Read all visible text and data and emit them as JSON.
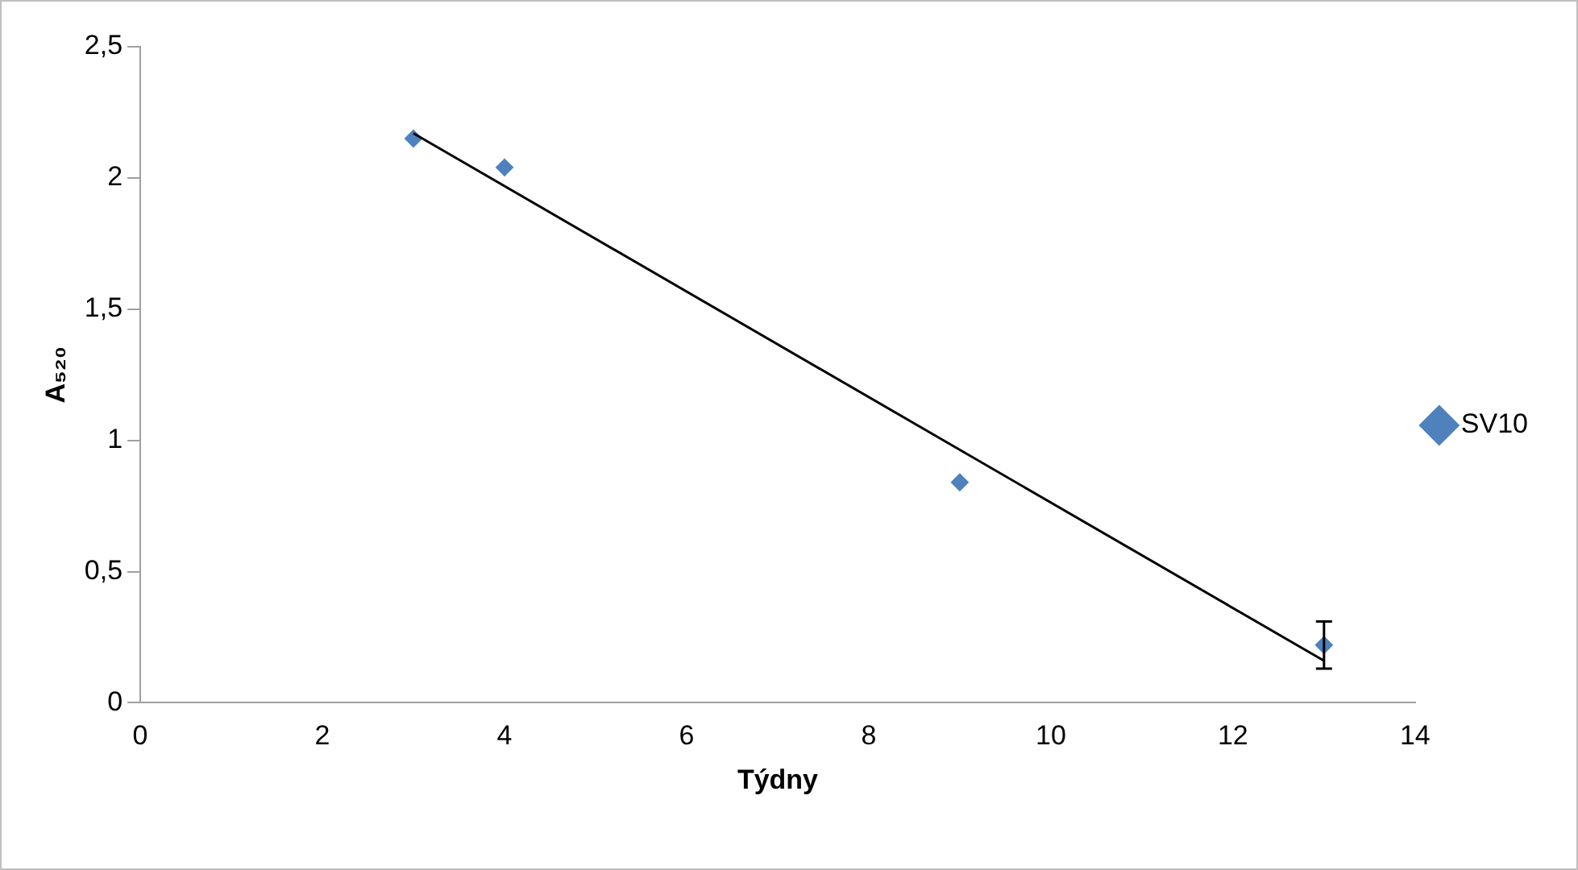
{
  "chart_data": {
    "type": "scatter",
    "xlabel": "Týdny",
    "ylabel": "A₅₂₀",
    "xlim": [
      0,
      14
    ],
    "xticks": [
      0,
      2,
      4,
      6,
      8,
      10,
      12,
      14
    ],
    "ylim": [
      0,
      2.5
    ],
    "yticks": [
      0,
      {
        "value": 0.5,
        "label": "0,5"
      },
      1,
      {
        "value": 1.5,
        "label": "1,5"
      },
      2,
      {
        "value": 2.5,
        "label": "2,5"
      }
    ],
    "grid": false,
    "legend": "right",
    "marker": "diamond",
    "series": [
      {
        "name": "SV10",
        "color": "#4f81bd",
        "x": [
          3,
          4,
          9,
          13
        ],
        "values": [
          2.15,
          2.04,
          0.84,
          0.22
        ],
        "errors": [
          null,
          null,
          null,
          0.09
        ]
      },
      {
        "type": "line",
        "color": "#000000",
        "x": [
          3,
          13
        ],
        "values": [
          2.17,
          0.16
        ],
        "marker": "none"
      }
    ]
  }
}
